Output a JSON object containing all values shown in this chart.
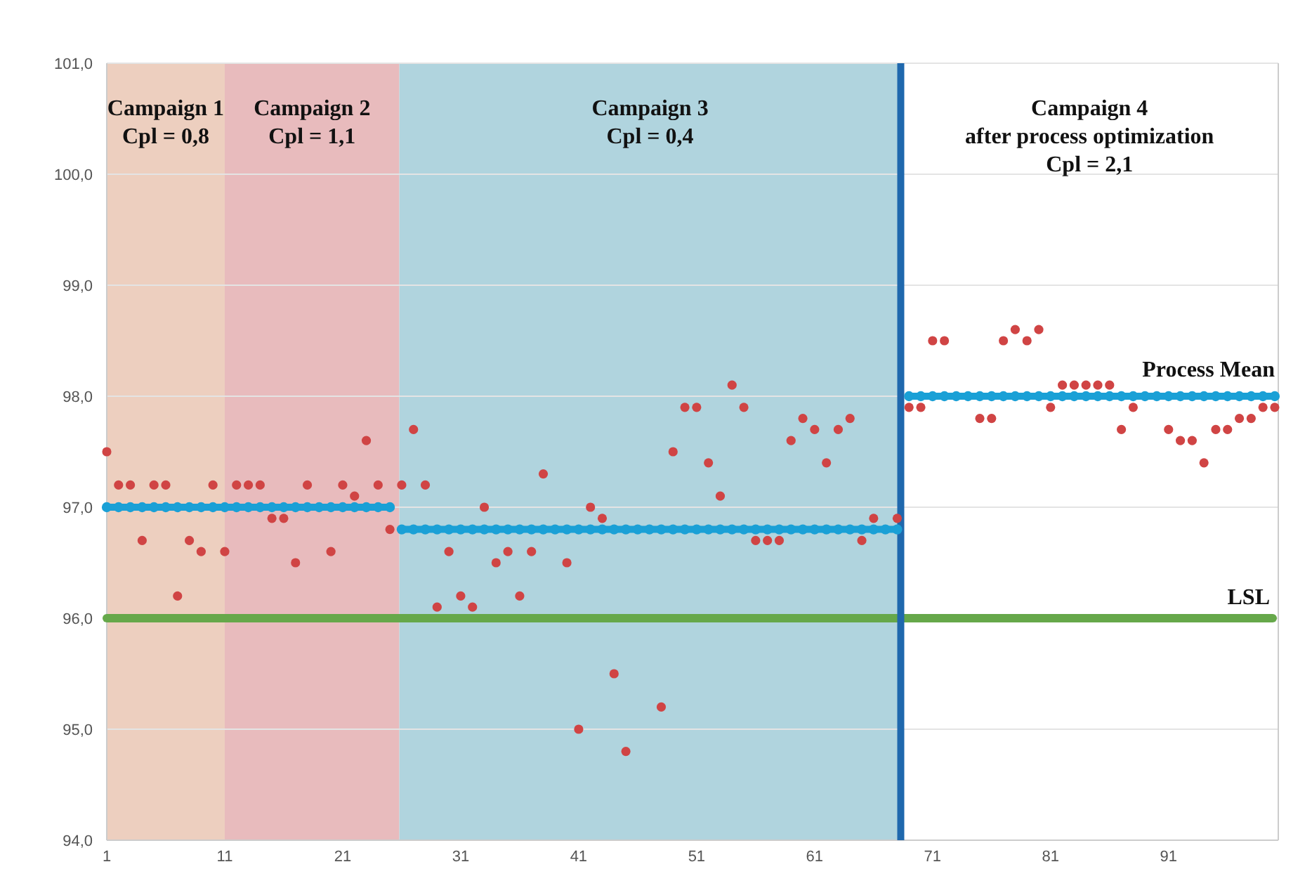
{
  "chart_data": {
    "type": "scatter",
    "x": [
      1,
      2,
      3,
      4,
      5,
      6,
      7,
      8,
      9,
      10,
      11,
      12,
      13,
      14,
      15,
      16,
      17,
      18,
      20,
      21,
      22,
      23,
      24,
      25,
      26,
      27,
      28,
      29,
      30,
      31,
      32,
      33,
      34,
      35,
      36,
      37,
      38,
      40,
      41,
      42,
      43,
      44,
      45,
      48,
      49,
      50,
      51,
      52,
      53,
      54,
      55,
      56,
      57,
      58,
      59,
      60,
      61,
      62,
      63,
      64,
      65,
      66,
      68,
      69,
      70,
      71,
      72,
      75,
      76,
      77,
      78,
      79,
      80,
      81,
      82,
      83,
      84,
      85,
      86,
      87,
      88,
      91,
      92,
      93,
      94,
      95,
      96,
      97,
      98,
      99,
      100
    ],
    "series": [
      {
        "color": "#d04444",
        "values": [
          97.5,
          97.2,
          97.2,
          96.7,
          97.2,
          97.2,
          96.2,
          96.7,
          96.6,
          97.2,
          96.6,
          97.2,
          97.2,
          97.2,
          96.9,
          96.9,
          96.5,
          97.2,
          96.6,
          97.2,
          97.1,
          97.6,
          97.2,
          96.8,
          97.2,
          97.7,
          97.2,
          96.1,
          96.6,
          96.2,
          96.1,
          97.0,
          96.5,
          96.6,
          96.2,
          96.6,
          97.3,
          96.5,
          95.0,
          97.0,
          96.9,
          95.5,
          94.8,
          95.2,
          97.5,
          97.9,
          97.9,
          97.4,
          97.1,
          98.1,
          97.9,
          96.7,
          96.7,
          96.7,
          97.6,
          97.8,
          97.7,
          97.4,
          97.7,
          97.8,
          96.7,
          96.9,
          96.9,
          97.9,
          97.9,
          98.5,
          98.5,
          97.8,
          97.8,
          98.5,
          98.6,
          98.5,
          98.6,
          97.9,
          98.1,
          98.1,
          98.1,
          98.1,
          98.1,
          97.7,
          97.9,
          97.7,
          97.6,
          97.6,
          97.4,
          97.7,
          97.7,
          97.8,
          97.8,
          97.9,
          97.9
        ]
      },
      {
        "type": "line",
        "color": "#1aa0d6",
        "x": [
          1,
          2,
          3,
          4,
          5,
          6,
          7,
          8,
          9,
          10,
          11,
          12,
          13,
          14,
          15,
          16,
          17,
          18,
          19,
          20,
          21,
          22,
          23,
          24,
          25
        ],
        "values": [
          97,
          97,
          97,
          97,
          97,
          97,
          97,
          97,
          97,
          97,
          97,
          97,
          97,
          97,
          97,
          97,
          97,
          97,
          97,
          97,
          97,
          97,
          97,
          97,
          97
        ]
      },
      {
        "type": "line",
        "color": "#1aa0d6",
        "x": [
          26,
          27,
          28,
          29,
          30,
          31,
          32,
          33,
          34,
          35,
          36,
          37,
          38,
          39,
          40,
          41,
          42,
          43,
          44,
          45,
          46,
          47,
          48,
          49,
          50,
          51,
          52,
          53,
          54,
          55,
          56,
          57,
          58,
          59,
          60,
          61,
          62,
          63,
          64,
          65,
          66,
          67,
          68
        ],
        "values": [
          96.8,
          96.8,
          96.8,
          96.8,
          96.8,
          96.8,
          96.8,
          96.8,
          96.8,
          96.8,
          96.8,
          96.8,
          96.8,
          96.8,
          96.8,
          96.8,
          96.8,
          96.8,
          96.8,
          96.8,
          96.8,
          96.8,
          96.8,
          96.8,
          96.8,
          96.8,
          96.8,
          96.8,
          96.8,
          96.8,
          96.8,
          96.8,
          96.8,
          96.8,
          96.8,
          96.8,
          96.8,
          96.8,
          96.8,
          96.8,
          96.8,
          96.8,
          96.8
        ]
      },
      {
        "type": "line",
        "name": "Process Mean",
        "color": "#1aa0d6",
        "x": [
          69,
          70,
          71,
          72,
          73,
          74,
          75,
          76,
          77,
          78,
          79,
          80,
          81,
          82,
          83,
          84,
          85,
          86,
          87,
          88,
          89,
          90,
          91,
          92,
          93,
          94,
          95,
          96,
          97,
          98,
          99,
          100
        ],
        "values": [
          98,
          98,
          98,
          98,
          98,
          98,
          98,
          98,
          98,
          98,
          98,
          98,
          98,
          98,
          98,
          98,
          98,
          98,
          98,
          98,
          98,
          98,
          98,
          98,
          98,
          98,
          98,
          98,
          98,
          98,
          98,
          98
        ]
      }
    ],
    "marker": "circle",
    "xlim": [
      1,
      100.3
    ],
    "ylim": [
      94,
      101
    ],
    "xticks": [
      1,
      11,
      21,
      31,
      41,
      51,
      61,
      71,
      81,
      91
    ],
    "yticks": [
      {
        "value": 94,
        "label": "94,0"
      },
      {
        "value": 95,
        "label": "95,0"
      },
      {
        "value": 96,
        "label": "96,0"
      },
      {
        "value": 97,
        "label": "97,0"
      },
      {
        "value": 98,
        "label": "98,0"
      },
      {
        "value": 99,
        "label": "99,0"
      },
      {
        "value": 100,
        "label": "100,0"
      },
      {
        "value": 101,
        "label": "101,0"
      }
    ],
    "grid": "y",
    "bands": [
      {
        "axis": "x",
        "from": 1,
        "to": 11,
        "label": "Campaign 1\nCpl = 0,8",
        "color": "#edcfbf"
      },
      {
        "axis": "x",
        "from": 11,
        "to": 25.8,
        "label": "Campaign 2\nCpl = 1,1",
        "color": "#e8bbbd"
      },
      {
        "axis": "x",
        "from": 25.8,
        "to": 68.3,
        "label": "Campaign 3\nCpl = 0,4",
        "color": "#b0d4de"
      }
    ],
    "ref_lines": [
      {
        "axis": "y",
        "value": 96,
        "label": "LSL",
        "color": "#66a84a"
      },
      {
        "axis": "x",
        "value": 68.3,
        "color": "#1f68ad"
      }
    ],
    "annotations": [
      "Campaign 4\nafter process optimization\nCpl = 2,1"
    ]
  }
}
